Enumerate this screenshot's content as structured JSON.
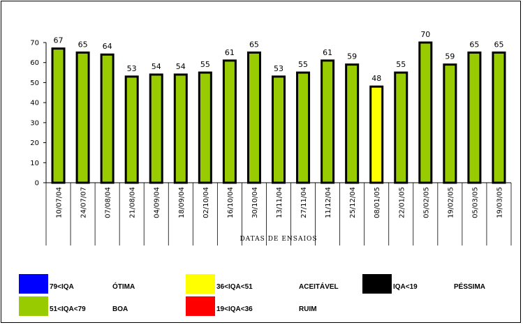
{
  "chart_data": {
    "type": "bar",
    "categories": [
      "10/07/04",
      "24/07/07",
      "07/08/04",
      "21/08/04",
      "04/09/04",
      "18/09/04",
      "02/10/04",
      "16/10/04",
      "30/10/04",
      "13/11/04",
      "27/11/04",
      "11/12/04",
      "25/12/04",
      "08/01/05",
      "22/01/05",
      "05/02/05",
      "19/02/05",
      "05/03/05",
      "19/03/05"
    ],
    "values": [
      67,
      65,
      64,
      53,
      54,
      54,
      55,
      61,
      65,
      53,
      55,
      61,
      59,
      48,
      55,
      70,
      59,
      65,
      65
    ],
    "bar_colors": [
      "#99cc00",
      "#99cc00",
      "#99cc00",
      "#99cc00",
      "#99cc00",
      "#99cc00",
      "#99cc00",
      "#99cc00",
      "#99cc00",
      "#99cc00",
      "#99cc00",
      "#99cc00",
      "#99cc00",
      "#ffff00",
      "#99cc00",
      "#99cc00",
      "#99cc00",
      "#99cc00",
      "#99cc00"
    ],
    "xlabel": "DATAS DE ENSAIOS",
    "ylabel": "",
    "ylim": [
      0,
      70
    ],
    "yticks": [
      0,
      10,
      20,
      30,
      40,
      50,
      60,
      70
    ],
    "grid": false
  },
  "legend": [
    {
      "range": "79<IQA",
      "label": "ÓTIMA",
      "color": "#0000ff"
    },
    {
      "range": "36<IQA<51",
      "label": "ACEITÁVEL",
      "color": "#ffff00"
    },
    {
      "range": "IQA<19",
      "label": "PÉSSIMA",
      "color": "#000000"
    },
    {
      "range": "51<IQA<79",
      "label": "BOA",
      "color": "#99cc00"
    },
    {
      "range": "19<IQA<36",
      "label": "RUIM",
      "color": "#ff0000"
    }
  ]
}
